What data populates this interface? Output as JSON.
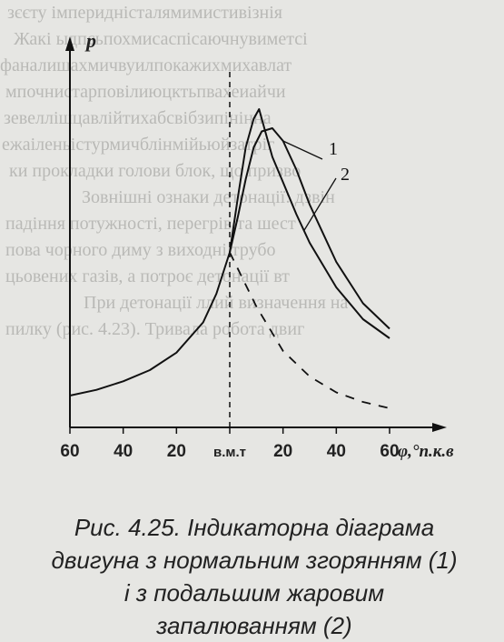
{
  "page": {
    "background_text": [
      "зєєту  імперидністалямимистивізнія",
      "Жакі  ыдпсьпохмисаспісаючнувиметсі",
      "фаналишахмичвуилпокажихмихавлат",
      "мпочнистарповілиюцктьпвахеиайчи",
      "зевеллішцавлійтихабсвібзипінінна",
      "ежаіленьістурмичблінмійьюйзатріг",
      "ки прокладки голови блок, що призво",
      "Зовнішні ознаки детонації: дзвін",
      "падіння потужності, перегрів та шест",
      "пова чорного диму з виходні трубо",
      "цьовених газів, а потроє детонації вт",
      "При детонації ллий визначення на",
      "пилку (рис. 4.23). Тривала робота двиг"
    ],
    "caption_lines": [
      "Рис. 4.25. Індикаторна діаграма",
      "двигуна з нормальним згорянням (1)",
      "і з подальшим жаровим",
      "запалюванням (2)"
    ]
  },
  "chart_data": {
    "type": "line",
    "title": "",
    "xlabel": "φ,°п.к.в",
    "ylabel": "p",
    "x_tick_labels": [
      "60",
      "40",
      "20",
      "в.м.т",
      "20",
      "40",
      "60"
    ],
    "x_ticks": [
      -60,
      -40,
      -20,
      0,
      20,
      40,
      60
    ],
    "xlim": [
      -65,
      80
    ],
    "ylim": [
      0,
      1.0
    ],
    "reference_line": {
      "x": 0,
      "style": "dashed",
      "label": "в.м.т"
    },
    "series": [
      {
        "name": "1",
        "style": "solid",
        "x": [
          -60,
          -50,
          -40,
          -30,
          -20,
          -10,
          -5,
          0,
          3,
          6,
          9,
          12,
          16,
          20,
          25,
          30,
          40,
          50,
          60
        ],
        "y": [
          0.1,
          0.118,
          0.145,
          0.18,
          0.235,
          0.33,
          0.42,
          0.55,
          0.66,
          0.78,
          0.88,
          0.93,
          0.94,
          0.9,
          0.81,
          0.7,
          0.52,
          0.39,
          0.31
        ]
      },
      {
        "name": "2",
        "style": "solid",
        "x": [
          0,
          3,
          6,
          9,
          11,
          13,
          16,
          20,
          25,
          30,
          40,
          50,
          60
        ],
        "y": [
          0.55,
          0.72,
          0.88,
          0.97,
          1.0,
          0.94,
          0.85,
          0.77,
          0.67,
          0.58,
          0.44,
          0.34,
          0.28
        ]
      },
      {
        "name": "compression",
        "style": "dashed",
        "x": [
          0,
          10,
          20,
          30,
          40,
          50,
          60
        ],
        "y": [
          0.55,
          0.38,
          0.24,
          0.16,
          0.11,
          0.08,
          0.06
        ]
      }
    ],
    "annotations": [
      {
        "text": "1",
        "series": "1"
      },
      {
        "text": "2",
        "series": "2"
      }
    ]
  }
}
